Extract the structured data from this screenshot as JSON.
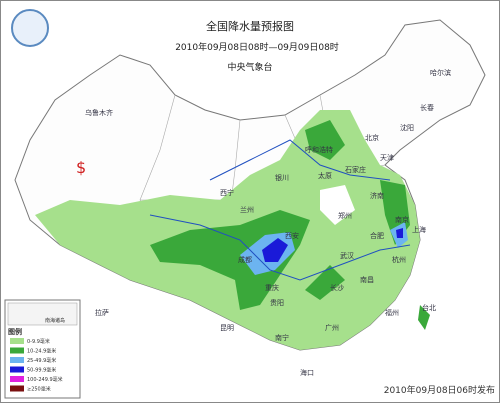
{
  "header": {
    "title": "全国降水量预报图",
    "period": "2010年09月08日08时—09月09日08时",
    "issuer": "中央气象台"
  },
  "cities": [
    "乌鲁木齐",
    "拉萨",
    "西宁",
    "兰州",
    "银川",
    "呼和浩特",
    "北京",
    "天津",
    "石家庄",
    "太原",
    "济南",
    "郑州",
    "西安",
    "成都",
    "重庆",
    "武汉",
    "合肥",
    "南京",
    "上海",
    "杭州",
    "长沙",
    "南昌",
    "福州",
    "台北",
    "贵阳",
    "昆明",
    "南宁",
    "广州",
    "海口",
    "哈尔滨",
    "长春",
    "沈阳"
  ],
  "legend": {
    "title": "图例",
    "inset": "南海诸岛",
    "items": [
      {
        "label": "0-9.9毫米",
        "color": "#a6e08c"
      },
      {
        "label": "10-24.9毫米",
        "color": "#3aa83a"
      },
      {
        "label": "25-49.9毫米",
        "color": "#6cb4f0"
      },
      {
        "label": "50-99.9毫米",
        "color": "#1a1ad8"
      },
      {
        "label": "100-249.9毫米",
        "color": "#e020e0"
      },
      {
        "label": "≥250毫米",
        "color": "#7a1010"
      }
    ]
  },
  "symbol": "$",
  "footer": "2010年09月08日06时发布"
}
